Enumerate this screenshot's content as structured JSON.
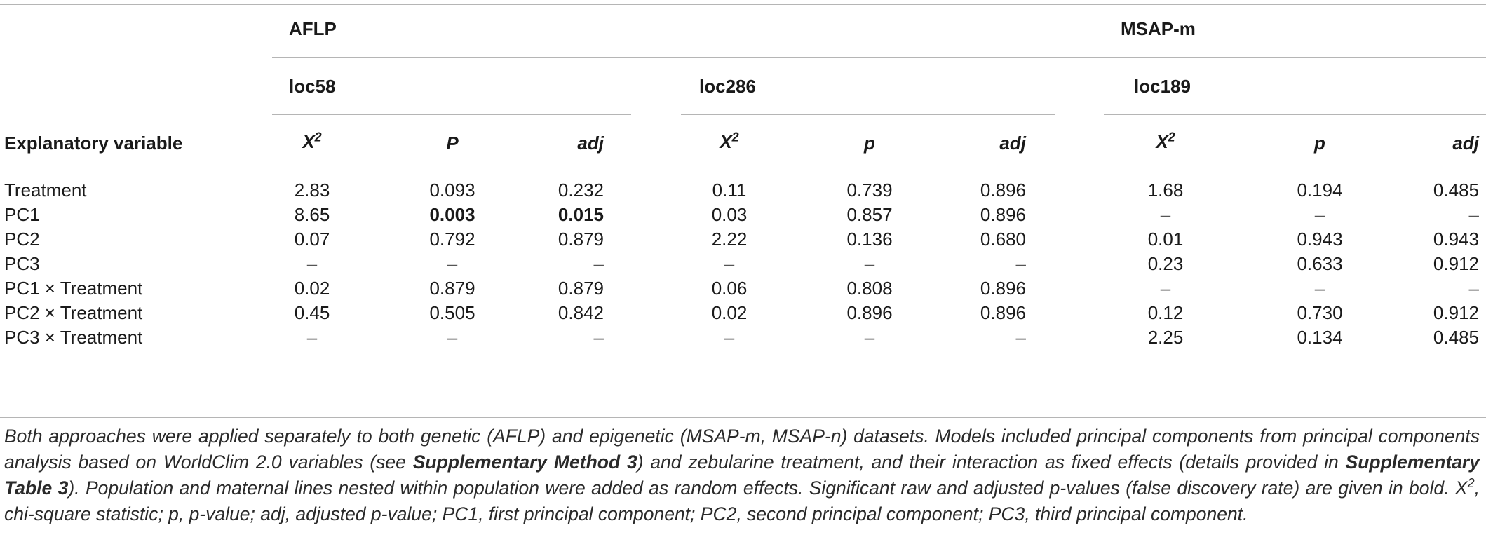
{
  "headers": {
    "aflp": "AFLP",
    "msap_m": "MSAP-m",
    "loc58": "loc58",
    "loc286": "loc286",
    "loc189": "loc189",
    "explanatory": "Explanatory variable",
    "x2_base": "X",
    "x2_sup": "2",
    "P_upper": "P",
    "p_lower": "p",
    "adj": "adj"
  },
  "rows": [
    {
      "label": "Treatment",
      "v": [
        "2.83",
        "0.093",
        "0.232",
        "0.11",
        "0.739",
        "0.896",
        "1.68",
        "0.194",
        "0.485"
      ],
      "bold": [
        false,
        false,
        false,
        false,
        false,
        false,
        false,
        false,
        false
      ]
    },
    {
      "label": "PC1",
      "v": [
        "8.65",
        "0.003",
        "0.015",
        "0.03",
        "0.857",
        "0.896",
        "–",
        "–",
        "–"
      ],
      "bold": [
        false,
        true,
        true,
        false,
        false,
        false,
        false,
        false,
        false
      ]
    },
    {
      "label": "PC2",
      "v": [
        "0.07",
        "0.792",
        "0.879",
        "2.22",
        "0.136",
        "0.680",
        "0.01",
        "0.943",
        "0.943"
      ],
      "bold": [
        false,
        false,
        false,
        false,
        false,
        false,
        false,
        false,
        false
      ]
    },
    {
      "label": "PC3",
      "v": [
        "–",
        "–",
        "–",
        "–",
        "–",
        "–",
        "0.23",
        "0.633",
        "0.912"
      ],
      "bold": [
        false,
        false,
        false,
        false,
        false,
        false,
        false,
        false,
        false
      ]
    },
    {
      "label": "PC1 × Treatment",
      "v": [
        "0.02",
        "0.879",
        "0.879",
        "0.06",
        "0.808",
        "0.896",
        "–",
        "–",
        "–"
      ],
      "bold": [
        false,
        false,
        false,
        false,
        false,
        false,
        false,
        false,
        false
      ]
    },
    {
      "label": "PC2 × Treatment",
      "v": [
        "0.45",
        "0.505",
        "0.842",
        "0.02",
        "0.896",
        "0.896",
        "0.12",
        "0.730",
        "0.912"
      ],
      "bold": [
        false,
        false,
        false,
        false,
        false,
        false,
        false,
        false,
        false
      ]
    },
    {
      "label": "PC3 × Treatment",
      "v": [
        "–",
        "–",
        "–",
        "–",
        "–",
        "–",
        "2.25",
        "0.134",
        "0.485"
      ],
      "bold": [
        false,
        false,
        false,
        false,
        false,
        false,
        false,
        false,
        false
      ]
    }
  ],
  "footnote": {
    "t1": "Both approaches were applied separately to both genetic (AFLP) and epigenetic (MSAP-m, MSAP-n) datasets. Models included principal components from principal components analysis based on WorldClim 2.0 variables (see ",
    "b1": "Supplementary Method 3",
    "t2": ") and zebularine treatment, and their interaction as fixed effects (details provided in ",
    "b2": "Supplementary Table 3",
    "t3": "). Population and maternal lines nested within population were added as random effects. Significant raw and adjusted p-values (false discovery rate) are given in bold. ",
    "x2_base": "X",
    "x2_sup": "2",
    "t4": ", chi-square statistic; p, p-value; adj, adjusted p-value; PC1, first principal component; PC2, second principal component; PC3, third principal component."
  }
}
